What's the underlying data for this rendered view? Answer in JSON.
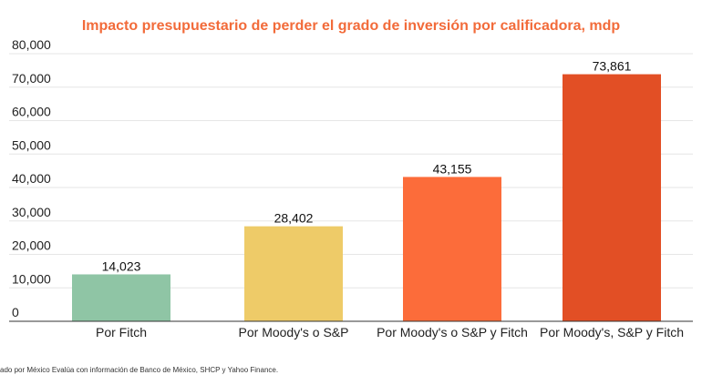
{
  "chart_data": {
    "type": "bar",
    "title": "Impacto presupuestario de perder el grado de inversión por calificadora, mdp",
    "categories": [
      "Por Fitch",
      "Por Moody's o S&P",
      "Por Moody's o S&P y Fitch",
      "Por Moody's, S&P y Fitch"
    ],
    "values": [
      14023,
      28402,
      43155,
      73861
    ],
    "value_labels": [
      "14,023",
      "28,402",
      "43,155",
      "73,861"
    ],
    "colors": [
      "#8fc5a5",
      "#eecb68",
      "#fc6c3a",
      "#e24f25"
    ],
    "ylim": [
      0,
      80000
    ],
    "yticks": [
      0,
      10000,
      20000,
      30000,
      40000,
      50000,
      60000,
      70000,
      80000
    ],
    "ytick_labels": [
      "0",
      "10,000",
      "20,000",
      "30,000",
      "40,000",
      "50,000",
      "60,000",
      "70,000",
      "80,000"
    ],
    "grid": true
  },
  "source": "ado por México Evalúa con información de Banco de México, SHCP y Yahoo Finance."
}
